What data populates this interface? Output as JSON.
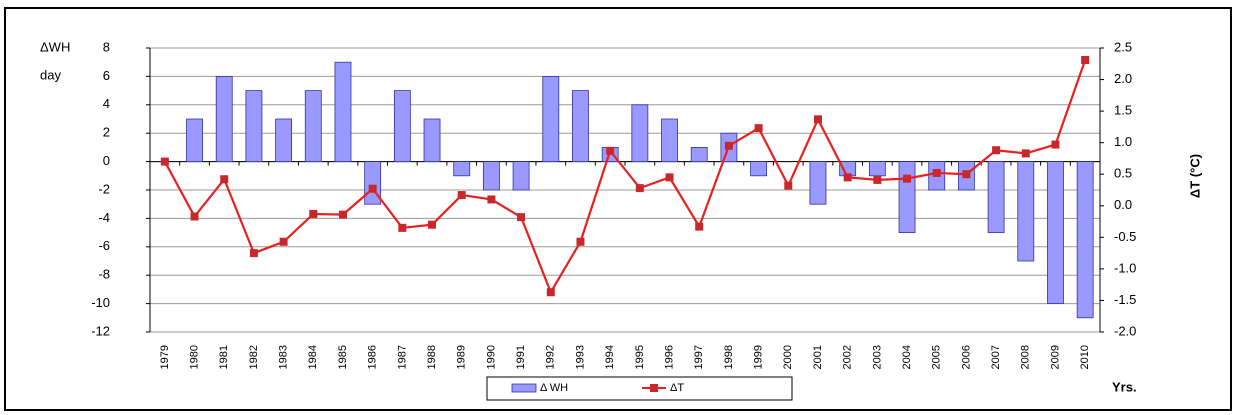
{
  "chart_data": {
    "type": "bar-line",
    "y_label": [
      "ΔWH",
      "day"
    ],
    "y2_label": "ΔT (°C)",
    "x_label": "Yrs.",
    "categories": [
      "1979",
      "1980",
      "1981",
      "1982",
      "1983",
      "1984",
      "1985",
      "1986",
      "1987",
      "1988",
      "1989",
      "1990",
      "1991",
      "1992",
      "1993",
      "1994",
      "1995",
      "1996",
      "1997",
      "1998",
      "1999",
      "2000",
      "2001",
      "2002",
      "2003",
      "2004",
      "2005",
      "2006",
      "2007",
      "2008",
      "2009",
      "2010"
    ],
    "series": [
      {
        "name": "Δ WH",
        "type": "bar",
        "color": "#9999ff",
        "values": [
          0,
          3,
          6,
          5,
          3,
          5,
          7,
          -3,
          5,
          3,
          -1,
          -2,
          -2,
          6,
          5,
          1,
          4,
          3,
          1,
          2,
          -1,
          0,
          -3,
          -1,
          -1,
          -5,
          -2,
          -2,
          -5,
          -7,
          -10,
          -11
        ]
      },
      {
        "name": "ΔT",
        "type": "line",
        "axis": "y2",
        "color": "#e8201e",
        "values": [
          0.7,
          -0.17,
          0.42,
          -0.75,
          -0.57,
          -0.13,
          -0.14,
          0.27,
          -0.35,
          -0.3,
          0.17,
          0.1,
          -0.18,
          -1.37,
          -0.57,
          0.87,
          0.28,
          0.45,
          -0.33,
          0.95,
          1.23,
          0.32,
          1.37,
          0.45,
          0.41,
          0.43,
          0.52,
          0.5,
          0.88,
          0.83,
          0.97,
          2.31
        ]
      }
    ],
    "ylim": [
      -12,
      8
    ],
    "yticks": [
      -12,
      -10,
      -8,
      -6,
      -4,
      -2,
      0,
      2,
      4,
      6,
      8
    ],
    "y2lim": [
      -2,
      2.5
    ],
    "y2ticks": [
      {
        "value": -2,
        "label": "-2.0"
      },
      {
        "value": -1.5,
        "label": "-1.5"
      },
      {
        "value": -1,
        "label": "-1.0"
      },
      {
        "value": -0.5,
        "label": "-0.5"
      },
      {
        "value": 0,
        "label": "0.0"
      },
      {
        "value": 0.5,
        "label": "0.5"
      },
      {
        "value": 1,
        "label": "1.0"
      },
      {
        "value": 1.5,
        "label": "1.5"
      },
      {
        "value": 2,
        "label": "2.0"
      },
      {
        "value": 2.5,
        "label": "2.5"
      }
    ],
    "grid": true,
    "legend": "bottom"
  }
}
